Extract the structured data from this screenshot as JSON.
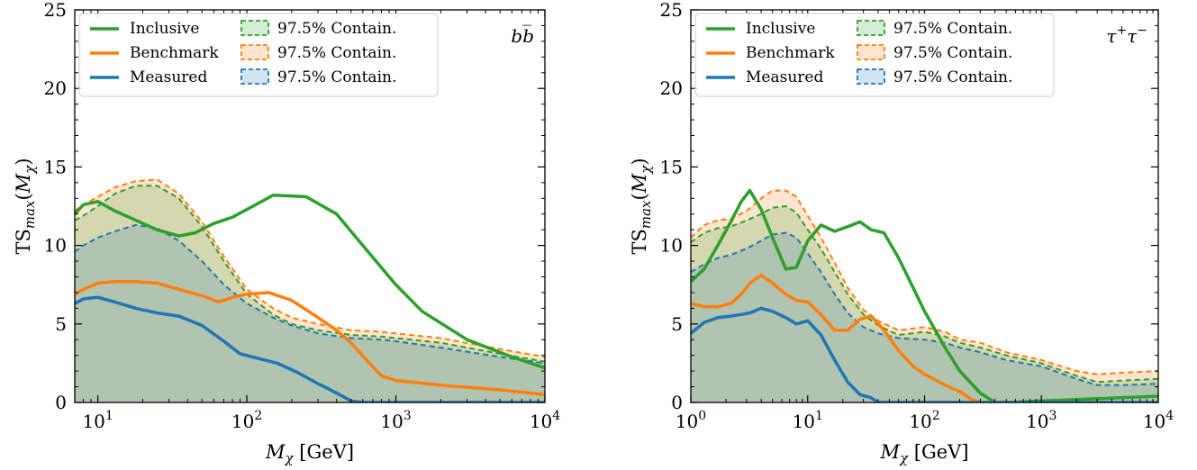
{
  "chart_data": [
    {
      "type": "line",
      "panel_label": "b̅b",
      "xlabel": "Mχ [GeV]",
      "ylabel": "TSmax(Mχ)",
      "xscale": "log",
      "xlim": [
        7,
        10000
      ],
      "ylim": [
        0,
        25
      ],
      "yticks": [
        0,
        5,
        10,
        15,
        20,
        25
      ],
      "xticks": [
        {
          "value": 10,
          "label": "10¹"
        },
        {
          "value": 100,
          "label": "10²"
        },
        {
          "value": 1000,
          "label": "10³"
        },
        {
          "value": 10000,
          "label": "10⁴"
        }
      ],
      "legend": {
        "position": "top-left",
        "lines": [
          {
            "label": "Inclusive",
            "color": "#2ca02c"
          },
          {
            "label": "Benchmark",
            "color": "#ff7f0e"
          },
          {
            "label": "Measured",
            "color": "#1f77b4"
          }
        ],
        "bands": [
          {
            "label": "97.5% Contain.",
            "color": "#2ca02c"
          },
          {
            "label": "97.5% Contain.",
            "color": "#ff7f0e"
          },
          {
            "label": "97.5% Contain.",
            "color": "#1f77b4"
          }
        ]
      },
      "series": [
        {
          "name": "Inclusive",
          "color": "#2ca02c",
          "x": [
            7,
            8,
            10,
            13,
            18,
            25,
            35,
            45,
            60,
            80,
            110,
            150,
            250,
            400,
            600,
            1000,
            1500,
            3000,
            6000,
            10000
          ],
          "y": [
            12.0,
            12.6,
            12.8,
            12.2,
            11.6,
            11.0,
            10.6,
            10.8,
            11.4,
            11.8,
            12.5,
            13.2,
            13.1,
            12.0,
            10.0,
            7.5,
            5.8,
            4.0,
            2.9,
            2.2
          ]
        },
        {
          "name": "Benchmark",
          "color": "#ff7f0e",
          "x": [
            7,
            8,
            10,
            13,
            18,
            25,
            35,
            50,
            65,
            80,
            100,
            140,
            200,
            280,
            400,
            500,
            650,
            800,
            1000,
            2000,
            5000,
            10000
          ],
          "y": [
            6.9,
            7.2,
            7.6,
            7.7,
            7.7,
            7.6,
            7.2,
            6.8,
            6.4,
            6.7,
            6.9,
            7.0,
            6.5,
            5.6,
            4.6,
            3.8,
            2.6,
            1.7,
            1.4,
            1.1,
            0.8,
            0.5
          ]
        },
        {
          "name": "Measured",
          "color": "#1f77b4",
          "x": [
            7,
            8,
            10,
            13,
            18,
            25,
            35,
            50,
            70,
            90,
            120,
            160,
            220,
            300,
            400,
            500,
            600,
            10000
          ],
          "y": [
            6.3,
            6.6,
            6.7,
            6.4,
            6.0,
            5.7,
            5.5,
            4.9,
            3.9,
            3.1,
            2.8,
            2.5,
            1.9,
            1.2,
            0.6,
            0.1,
            0.0,
            0.0
          ]
        }
      ],
      "bands": [
        {
          "label": "97.5% Contain.",
          "color": "#ff7f0e",
          "x": [
            7,
            8,
            10,
            13,
            18,
            25,
            35,
            50,
            70,
            100,
            150,
            200,
            300,
            500,
            800,
            1000,
            2000,
            5000,
            10000
          ],
          "y": [
            12.2,
            12.6,
            13.1,
            13.7,
            14.1,
            14.2,
            13.3,
            11.5,
            9.3,
            7.2,
            6.0,
            5.4,
            5.0,
            4.6,
            4.5,
            4.4,
            4.1,
            3.4,
            2.9
          ]
        },
        {
          "label": "97.5% Contain.",
          "color": "#2ca02c",
          "x": [
            7,
            8,
            10,
            13,
            18,
            25,
            35,
            50,
            70,
            100,
            150,
            200,
            300,
            500,
            800,
            1000,
            2000,
            5000,
            10000
          ],
          "y": [
            11.6,
            11.9,
            12.5,
            13.3,
            13.8,
            13.8,
            13.0,
            11.2,
            9.0,
            6.9,
            5.6,
            5.0,
            4.6,
            4.3,
            4.2,
            4.1,
            3.8,
            3.1,
            2.6
          ]
        },
        {
          "label": "97.5% Contain.",
          "color": "#1f77b4",
          "x": [
            7,
            8,
            10,
            13,
            18,
            25,
            35,
            50,
            70,
            100,
            150,
            200,
            300,
            500,
            800,
            1000,
            2000,
            5000,
            10000
          ],
          "y": [
            9.6,
            10.0,
            10.5,
            10.9,
            11.3,
            11.1,
            10.3,
            9.0,
            7.5,
            6.3,
            5.4,
            4.9,
            4.4,
            4.1,
            4.0,
            3.9,
            3.5,
            2.9,
            2.5
          ]
        }
      ]
    },
    {
      "type": "line",
      "panel_label": "τ⁺τ⁻",
      "xlabel": "Mχ [GeV]",
      "ylabel": "TSmax(Mχ)",
      "xscale": "log",
      "xlim": [
        1,
        10000
      ],
      "ylim": [
        0,
        25
      ],
      "yticks": [
        0,
        5,
        10,
        15,
        20,
        25
      ],
      "xticks": [
        {
          "value": 1,
          "label": "10⁰"
        },
        {
          "value": 10,
          "label": "10¹"
        },
        {
          "value": 100,
          "label": "10²"
        },
        {
          "value": 1000,
          "label": "10³"
        },
        {
          "value": 10000,
          "label": "10⁴"
        }
      ],
      "legend": {
        "position": "top-left",
        "lines": [
          {
            "label": "Inclusive",
            "color": "#2ca02c"
          },
          {
            "label": "Benchmark",
            "color": "#ff7f0e"
          },
          {
            "label": "Measured",
            "color": "#1f77b4"
          }
        ],
        "bands": [
          {
            "label": "97.5% Contain.",
            "color": "#2ca02c"
          },
          {
            "label": "97.5% Contain.",
            "color": "#ff7f0e"
          },
          {
            "label": "97.5% Contain.",
            "color": "#1f77b4"
          }
        ]
      },
      "series": [
        {
          "name": "Inclusive",
          "color": "#2ca02c",
          "x": [
            1,
            1.3,
            1.7,
            2.2,
            2.7,
            3.2,
            4,
            5,
            6.5,
            8,
            10,
            13,
            17,
            22,
            28,
            35,
            45,
            60,
            80,
            100,
            150,
            200,
            300,
            400,
            500,
            10000
          ],
          "y": [
            7.7,
            8.5,
            10.0,
            11.5,
            12.8,
            13.5,
            12.3,
            10.5,
            8.5,
            8.6,
            10.3,
            11.3,
            10.9,
            11.2,
            11.5,
            11.0,
            10.8,
            9.2,
            7.3,
            5.8,
            3.5,
            2.0,
            0.6,
            0.0,
            0.0,
            0.4
          ]
        },
        {
          "name": "Benchmark",
          "color": "#ff7f0e",
          "x": [
            1,
            1.3,
            1.7,
            2.2,
            2.7,
            3.2,
            4,
            5,
            6.5,
            8,
            10,
            13,
            17,
            22,
            28,
            35,
            45,
            60,
            80,
            100,
            150,
            200,
            250,
            300
          ],
          "y": [
            6.3,
            6.1,
            6.1,
            6.3,
            6.9,
            7.6,
            8.1,
            7.6,
            6.9,
            6.5,
            6.4,
            5.6,
            4.6,
            4.6,
            5.3,
            5.5,
            4.6,
            3.3,
            2.3,
            1.8,
            1.1,
            0.7,
            0.2,
            0.0
          ]
        },
        {
          "name": "Measured",
          "color": "#1f77b4",
          "x": [
            1,
            1.3,
            1.7,
            2.2,
            2.7,
            3.2,
            4,
            5,
            6.5,
            8,
            10,
            13,
            17,
            22,
            28,
            35,
            40,
            10000
          ],
          "y": [
            4.4,
            5.1,
            5.4,
            5.5,
            5.6,
            5.7,
            6.0,
            5.8,
            5.4,
            5.0,
            5.2,
            4.3,
            2.7,
            1.3,
            0.5,
            0.3,
            0.0,
            0.0
          ]
        }
      ],
      "bands": [
        {
          "label": "97.5% Contain.",
          "color": "#ff7f0e",
          "x": [
            1,
            1.3,
            1.7,
            2.2,
            3,
            4,
            5,
            6.5,
            8,
            10,
            13,
            17,
            22,
            30,
            40,
            60,
            100,
            150,
            200,
            300,
            500,
            1000,
            2000,
            3000,
            5000,
            10000
          ],
          "y": [
            10.5,
            11.3,
            11.6,
            11.7,
            12.2,
            13.0,
            13.5,
            13.5,
            13.1,
            11.9,
            10.5,
            8.9,
            7.3,
            5.9,
            5.2,
            4.6,
            4.8,
            4.5,
            4.0,
            3.8,
            3.2,
            2.7,
            2.0,
            1.8,
            1.9,
            2.0
          ]
        },
        {
          "label": "97.5% Contain.",
          "color": "#2ca02c",
          "x": [
            1,
            1.3,
            1.7,
            2.2,
            3,
            4,
            5,
            6.5,
            8,
            10,
            13,
            17,
            22,
            30,
            40,
            60,
            100,
            150,
            200,
            300,
            500,
            1000,
            2000,
            3000,
            5000,
            10000
          ],
          "y": [
            10.2,
            10.8,
            11.1,
            11.2,
            11.6,
            12.0,
            12.4,
            12.5,
            12.1,
            11.0,
            9.8,
            8.3,
            6.9,
            5.6,
            4.9,
            4.3,
            4.5,
            4.2,
            3.8,
            3.5,
            3.0,
            2.5,
            1.7,
            1.3,
            1.4,
            1.5
          ]
        },
        {
          "label": "97.5% Contain.",
          "color": "#1f77b4",
          "x": [
            1,
            1.3,
            1.7,
            2.2,
            3,
            4,
            5,
            6.5,
            8,
            10,
            13,
            17,
            22,
            30,
            40,
            60,
            100,
            150,
            200,
            300,
            500,
            1000,
            2000,
            3000,
            5000,
            10000
          ],
          "y": [
            8.3,
            8.8,
            9.2,
            9.4,
            9.8,
            10.3,
            10.7,
            10.8,
            10.5,
            9.5,
            8.3,
            6.9,
            5.7,
            4.8,
            4.4,
            4.1,
            4.0,
            3.8,
            3.5,
            3.2,
            2.7,
            2.3,
            1.5,
            1.1,
            1.1,
            1.2
          ]
        }
      ]
    }
  ]
}
